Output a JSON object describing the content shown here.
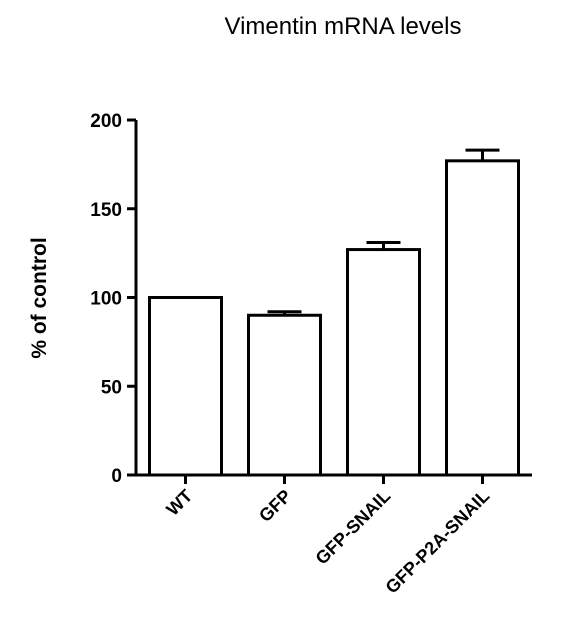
{
  "chart_data": {
    "type": "bar",
    "title": "Vimentin mRNA levels",
    "xlabel": "",
    "ylabel": "% of control",
    "categories": [
      "WT",
      "GFP",
      "GFP-SNAIL",
      "GFP-P2A-SNAIL"
    ],
    "values": [
      100,
      90,
      127,
      177
    ],
    "error": [
      0,
      2,
      4,
      6
    ],
    "ylim": [
      0,
      200
    ],
    "yticks": [
      0,
      50,
      100,
      150,
      200
    ],
    "grid": false,
    "bar_fill": "#ffffff",
    "bar_stroke": "#000000"
  }
}
